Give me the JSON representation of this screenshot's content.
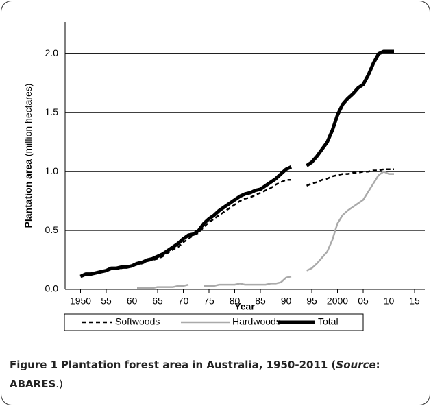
{
  "chart_data": {
    "type": "line",
    "ylabel": "Plantation area",
    "ylabel_unit": "(million hectares)",
    "xlabel": "Year",
    "x": [
      1950,
      1951,
      1952,
      1953,
      1954,
      1955,
      1956,
      1957,
      1958,
      1959,
      1960,
      1961,
      1962,
      1963,
      1964,
      1965,
      1966,
      1967,
      1968,
      1969,
      1970,
      1971,
      1972,
      1973,
      1974,
      1975,
      1976,
      1977,
      1978,
      1979,
      1980,
      1981,
      1982,
      1983,
      1984,
      1985,
      1986,
      1987,
      1988,
      1989,
      1990,
      1991,
      1992,
      1993,
      1994,
      1995,
      1996,
      1997,
      1998,
      1999,
      2000,
      2001,
      2002,
      2003,
      2004,
      2005,
      2006,
      2007,
      2008,
      2009,
      2010,
      2011
    ],
    "series": [
      {
        "name": "Softwoods",
        "color": "#000000",
        "style": "dashed",
        "width": 2.5,
        "values": [
          0.11,
          0.12,
          0.13,
          0.14,
          0.15,
          0.16,
          0.17,
          0.18,
          0.18,
          0.19,
          0.2,
          0.21,
          0.22,
          0.24,
          0.25,
          0.26,
          0.28,
          0.31,
          0.34,
          0.36,
          0.4,
          0.43,
          0.46,
          0.48,
          0.53,
          0.57,
          0.6,
          0.63,
          0.66,
          0.69,
          0.72,
          0.75,
          0.77,
          0.78,
          0.8,
          0.82,
          0.84,
          0.86,
          0.89,
          0.91,
          0.93,
          0.93,
          null,
          null,
          0.88,
          0.9,
          0.91,
          0.93,
          0.94,
          0.96,
          0.97,
          0.98,
          0.98,
          0.99,
          0.99,
          1.0,
          1.0,
          1.01,
          1.01,
          1.02,
          1.02,
          1.02
        ]
      },
      {
        "name": "Hardwoods",
        "color": "#aaaaaa",
        "style": "solid",
        "width": 2.5,
        "values": [
          null,
          null,
          null,
          null,
          null,
          null,
          null,
          null,
          null,
          null,
          null,
          0.01,
          0.01,
          0.01,
          0.01,
          0.02,
          0.02,
          0.02,
          0.02,
          0.03,
          0.03,
          0.04,
          null,
          null,
          0.03,
          0.03,
          0.03,
          0.04,
          0.04,
          0.04,
          0.04,
          0.05,
          0.04,
          0.04,
          0.04,
          0.04,
          0.04,
          0.05,
          0.05,
          0.06,
          0.1,
          0.11,
          null,
          null,
          0.16,
          0.18,
          0.22,
          0.27,
          0.32,
          0.42,
          0.56,
          0.63,
          0.67,
          0.7,
          0.73,
          0.76,
          0.83,
          0.9,
          0.97,
          1.0,
          0.98,
          0.98
        ]
      },
      {
        "name": "Total",
        "color": "#000000",
        "style": "solid",
        "width": 5,
        "values": [
          0.11,
          0.13,
          0.13,
          0.14,
          0.15,
          0.16,
          0.18,
          0.18,
          0.19,
          0.19,
          0.2,
          0.22,
          0.23,
          0.25,
          0.26,
          0.28,
          0.3,
          0.33,
          0.36,
          0.39,
          0.43,
          0.46,
          0.47,
          0.5,
          0.56,
          0.6,
          0.63,
          0.67,
          0.7,
          0.73,
          0.76,
          0.79,
          0.81,
          0.82,
          0.84,
          0.85,
          0.88,
          0.91,
          0.94,
          0.98,
          1.02,
          1.04,
          null,
          null,
          1.05,
          1.08,
          1.13,
          1.19,
          1.25,
          1.35,
          1.48,
          1.57,
          1.62,
          1.66,
          1.71,
          1.74,
          1.82,
          1.92,
          2.0,
          2.02,
          2.02,
          2.02
        ]
      }
    ],
    "xlim": [
      1947,
      2017
    ],
    "xticks": [
      1950,
      {
        "value": 1955,
        "label": "55"
      },
      {
        "value": 1960,
        "label": "60"
      },
      {
        "value": 1965,
        "label": "65"
      },
      {
        "value": 1970,
        "label": "70"
      },
      {
        "value": 1975,
        "label": "75"
      },
      {
        "value": 1980,
        "label": "80"
      },
      {
        "value": 1985,
        "label": "85"
      },
      {
        "value": 1990,
        "label": "90"
      },
      {
        "value": 1995,
        "label": "95"
      },
      2000,
      {
        "value": 2005,
        "label": "05"
      },
      {
        "value": 2010,
        "label": "10"
      },
      {
        "value": 2015,
        "label": "15"
      }
    ],
    "ylim": [
      0,
      2.27
    ],
    "yticks": [
      {
        "value": 0,
        "label": "0.0"
      },
      0.5,
      {
        "value": 1,
        "label": "1.0"
      },
      1.5,
      {
        "value": 2,
        "label": "2.0"
      }
    ],
    "grid": true,
    "legend": "bottom"
  },
  "caption": {
    "label": "Figure 1",
    "text": "Plantation forest area in Australia, 1950-2011 (",
    "source_word": "Source",
    "colon": ":",
    "source": "ABARES",
    "end": ".)"
  }
}
